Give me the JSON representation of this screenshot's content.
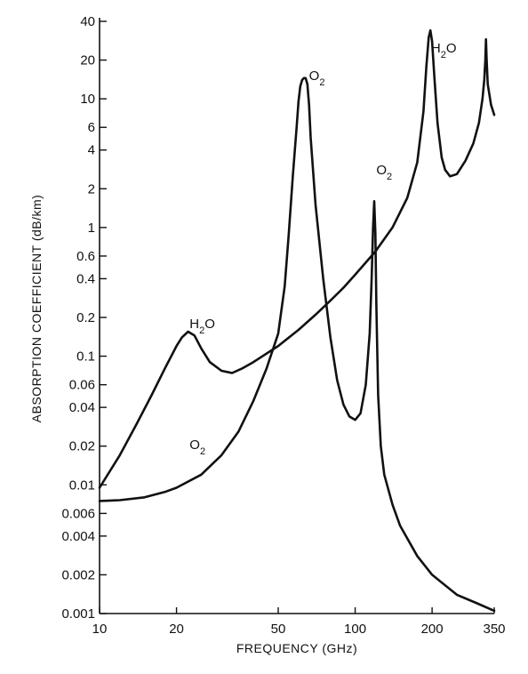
{
  "chart_data": {
    "type": "line",
    "xlabel": "FREQUENCY (GHz)",
    "ylabel": "ABSORPTION COEFFICIENT (dB/km)",
    "xscale": "log",
    "yscale": "log",
    "xlim": [
      10,
      350
    ],
    "ylim": [
      0.001,
      40
    ],
    "grid": false,
    "x_ticks": [
      {
        "value": 10,
        "label": "10"
      },
      {
        "value": 20,
        "label": "20"
      },
      {
        "value": 50,
        "label": "50"
      },
      {
        "value": 100,
        "label": "100"
      },
      {
        "value": 200,
        "label": "200"
      },
      {
        "value": 350,
        "label": "350"
      }
    ],
    "y_ticks": [
      {
        "value": 40,
        "label": "40"
      },
      {
        "value": 20,
        "label": "20"
      },
      {
        "value": 10,
        "label": "10"
      },
      {
        "value": 6,
        "label": "6"
      },
      {
        "value": 4,
        "label": "4"
      },
      {
        "value": 2,
        "label": "2"
      },
      {
        "value": 1,
        "label": "1"
      },
      {
        "value": 0.6,
        "label": "0.6"
      },
      {
        "value": 0.4,
        "label": "0.4"
      },
      {
        "value": 0.2,
        "label": "0.2"
      },
      {
        "value": 0.1,
        "label": "0.1"
      },
      {
        "value": 0.06,
        "label": "0.06"
      },
      {
        "value": 0.04,
        "label": "0.04"
      },
      {
        "value": 0.02,
        "label": "0.02"
      },
      {
        "value": 0.01,
        "label": "0.01"
      },
      {
        "value": 0.006,
        "label": "0.006"
      },
      {
        "value": 0.004,
        "label": "0.004"
      },
      {
        "value": 0.002,
        "label": "0.002"
      },
      {
        "value": 0.001,
        "label": "0.001"
      }
    ],
    "series": [
      {
        "name": "H2O",
        "points": [
          [
            10,
            0.0095
          ],
          [
            12,
            0.017
          ],
          [
            14,
            0.03
          ],
          [
            16,
            0.05
          ],
          [
            18,
            0.08
          ],
          [
            20,
            0.12
          ],
          [
            21,
            0.14
          ],
          [
            22.2,
            0.155
          ],
          [
            23.5,
            0.145
          ],
          [
            25,
            0.115
          ],
          [
            27,
            0.09
          ],
          [
            30,
            0.077
          ],
          [
            33,
            0.074
          ],
          [
            36,
            0.08
          ],
          [
            40,
            0.09
          ],
          [
            50,
            0.12
          ],
          [
            60,
            0.16
          ],
          [
            70,
            0.21
          ],
          [
            80,
            0.27
          ],
          [
            90,
            0.34
          ],
          [
            100,
            0.43
          ],
          [
            120,
            0.65
          ],
          [
            140,
            1.0
          ],
          [
            160,
            1.7
          ],
          [
            175,
            3.2
          ],
          [
            185,
            8.0
          ],
          [
            190,
            18
          ],
          [
            194,
            30
          ],
          [
            197,
            34
          ],
          [
            200,
            28
          ],
          [
            204,
            15
          ],
          [
            210,
            6.5
          ],
          [
            218,
            3.5
          ],
          [
            225,
            2.8
          ],
          [
            235,
            2.5
          ],
          [
            250,
            2.6
          ],
          [
            270,
            3.3
          ],
          [
            290,
            4.5
          ],
          [
            305,
            6.5
          ],
          [
            315,
            10
          ],
          [
            320,
            14
          ],
          [
            323,
            20
          ],
          [
            325,
            29
          ],
          [
            327,
            20
          ],
          [
            330,
            13
          ],
          [
            340,
            9
          ],
          [
            350,
            7.5
          ]
        ]
      },
      {
        "name": "O2",
        "points": [
          [
            10,
            0.0075
          ],
          [
            12,
            0.0076
          ],
          [
            15,
            0.008
          ],
          [
            18,
            0.0088
          ],
          [
            20,
            0.0095
          ],
          [
            25,
            0.012
          ],
          [
            30,
            0.017
          ],
          [
            35,
            0.026
          ],
          [
            40,
            0.045
          ],
          [
            45,
            0.08
          ],
          [
            50,
            0.15
          ],
          [
            53,
            0.35
          ],
          [
            55,
            0.9
          ],
          [
            57,
            2.5
          ],
          [
            59,
            6
          ],
          [
            60,
            9.5
          ],
          [
            61,
            12.5
          ],
          [
            62,
            14
          ],
          [
            63,
            14.5
          ],
          [
            64,
            14.5
          ],
          [
            65,
            13
          ],
          [
            66,
            9
          ],
          [
            67,
            5
          ],
          [
            70,
            1.5
          ],
          [
            75,
            0.4
          ],
          [
            80,
            0.14
          ],
          [
            85,
            0.065
          ],
          [
            90,
            0.042
          ],
          [
            95,
            0.034
          ],
          [
            100,
            0.032
          ],
          [
            105,
            0.036
          ],
          [
            110,
            0.06
          ],
          [
            114,
            0.15
          ],
          [
            116,
            0.4
          ],
          [
            117.5,
            1.0
          ],
          [
            118.75,
            1.6
          ],
          [
            120,
            0.9
          ],
          [
            121,
            0.25
          ],
          [
            123,
            0.05
          ],
          [
            126,
            0.02
          ],
          [
            130,
            0.012
          ],
          [
            140,
            0.007
          ],
          [
            150,
            0.0048
          ],
          [
            175,
            0.0028
          ],
          [
            200,
            0.002
          ],
          [
            250,
            0.0014
          ],
          [
            300,
            0.0012
          ],
          [
            350,
            0.00105
          ]
        ]
      }
    ],
    "annotations": [
      {
        "text": "O2",
        "main": "O",
        "sub": "2",
        "x": 66,
        "y": 14,
        "anchor": "start"
      },
      {
        "text": "O2",
        "main": "O",
        "sub": "2",
        "x": 121,
        "y": 2.6,
        "anchor": "start"
      },
      {
        "text": "H2O",
        "main": "H",
        "sub": "2",
        "tail": "O",
        "x": 198,
        "y": 23,
        "anchor": "start"
      },
      {
        "text": "H2O",
        "main": "H",
        "sub": "2",
        "tail": "O",
        "x": 22.5,
        "y": 0.165,
        "anchor": "start"
      },
      {
        "text": "O2",
        "main": "O",
        "sub": "2",
        "x": 22.5,
        "y": 0.019,
        "anchor": "start"
      }
    ]
  }
}
